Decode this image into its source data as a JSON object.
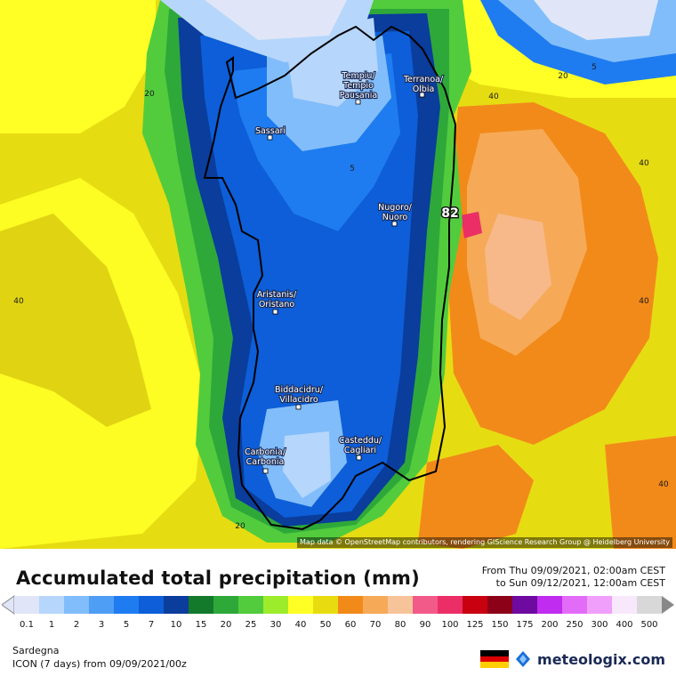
{
  "map": {
    "cities": [
      {
        "name": "Tempiu/\nTempio\nPausania"
      },
      {
        "name": "Terranoa/\nOlbia"
      },
      {
        "name": "Sassari"
      },
      {
        "name": "Nugoro/\nNuoro"
      },
      {
        "name": "Aristanis/\nOristano"
      },
      {
        "name": "Biddacidru/\nVillacidro"
      },
      {
        "name": "Casteddu/\nCagliari"
      },
      {
        "name": "Carbonia/\nCarbonia"
      }
    ],
    "isoline_labels": [
      "20",
      "5",
      "20",
      "5",
      "40",
      "40",
      "40",
      "40",
      "40",
      "20"
    ],
    "max_value": "82",
    "attribution": "Map data © OpenStreetMap contributors, rendering GIScience Research Group @ Heidelberg University"
  },
  "legend": {
    "title": "Accumulated total precipitation (mm)",
    "period_from": "From Thu 09/09/2021, 02:00am CEST",
    "period_to": "to Sun 09/12/2021, 12:00am CEST",
    "ticks": [
      "0.1",
      "1",
      "2",
      "3",
      "5",
      "7",
      "10",
      "15",
      "20",
      "25",
      "30",
      "40",
      "50",
      "60",
      "70",
      "80",
      "90",
      "100",
      "125",
      "150",
      "175",
      "200",
      "250",
      "300",
      "400",
      "500"
    ],
    "colors": [
      "#e0e6f7",
      "#b6d6fb",
      "#82bdfb",
      "#4f9ef5",
      "#1e7cf0",
      "#0d5ed8",
      "#0a3d9c",
      "#137a2b",
      "#2fa83a",
      "#52cc3c",
      "#9cec2c",
      "#ffff26",
      "#e8dc10",
      "#f28a1a",
      "#f6aa58",
      "#f7c49a",
      "#f25a8a",
      "#ec2e66",
      "#c80010",
      "#8c0018",
      "#6e0aa0",
      "#c02cf0",
      "#e26cf8",
      "#f0a0fa",
      "#f8e8fc",
      "#d8d8d8"
    ],
    "region": "Sardegna",
    "model": "ICON (7 days)  from  09/09/2021/00z",
    "brand": "meteologix.com",
    "flag_colors": [
      "#000000",
      "#dd0000",
      "#ffce00"
    ]
  }
}
